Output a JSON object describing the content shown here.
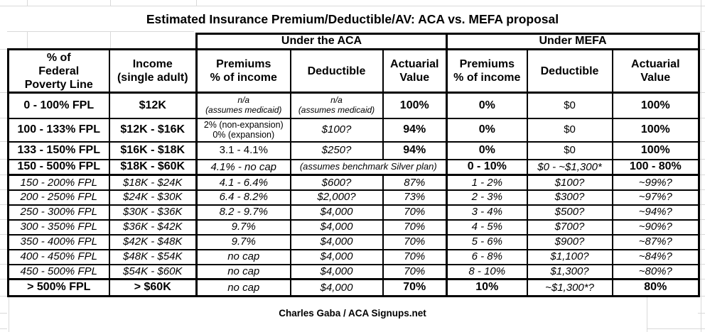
{
  "title": "Estimated Insurance Premium/Deductible/AV: ACA vs. MEFA proposal",
  "footer": "Charles Gaba / ACA Signups.net",
  "groups": {
    "aca": "Under the ACA",
    "mefa": "Under MEFA"
  },
  "headers": {
    "fpl": "% of\nFederal\nPoverty Line",
    "income": "Income\n(single adult)",
    "premiums": "Premiums\n% of income",
    "deductible": "Deductible",
    "av": "Actuarial\nValue"
  },
  "rows": [
    {
      "fpl": "0 - 100% FPL",
      "income": "$12K",
      "aca_premium": "n/a\n(assumes medicaid)",
      "aca_deductible": "n/a\n(assumes medicaid)",
      "aca_av": "100%",
      "mefa_premium": "0%",
      "mefa_deductible": "$0",
      "mefa_av": "100%"
    },
    {
      "fpl": "100 - 133% FPL",
      "income": "$12K - $16K",
      "aca_premium": "2% (non-expansion)\n0% (expansion)",
      "aca_deductible": "$100?",
      "aca_av": "94%",
      "mefa_premium": "0%",
      "mefa_deductible": "$0",
      "mefa_av": "100%"
    },
    {
      "fpl": "133 - 150% FPL",
      "income": "$16K - $18K",
      "aca_premium": "3.1 - 4.1%",
      "aca_deductible": "$250?",
      "aca_av": "94%",
      "mefa_premium": "0%",
      "mefa_deductible": "$0",
      "mefa_av": "100%"
    },
    {
      "fpl": "150 - 500% FPL",
      "income": "$18K - $60K",
      "aca_premium": "4.1% - no cap",
      "aca_deductible_av": "(assumes benchmark Silver plan)",
      "mefa_premium": "0 - 10%",
      "mefa_deductible": "$0 - ~$1,300*",
      "mefa_av": "100 - 80%"
    },
    {
      "fpl": "150 - 200% FPL",
      "income": "$18K - $24K",
      "aca_premium": "4.1 - 6.4%",
      "aca_deductible": "$600?",
      "aca_av": "87%",
      "mefa_premium": "1 - 2%",
      "mefa_deductible": "$100?",
      "mefa_av": "~99%?"
    },
    {
      "fpl": "200 - 250% FPL",
      "income": "$24K - $30K",
      "aca_premium": "6.4 - 8.2%",
      "aca_deductible": "$2,000?",
      "aca_av": "73%",
      "mefa_premium": "2 - 3%",
      "mefa_deductible": "$300?",
      "mefa_av": "~97%?"
    },
    {
      "fpl": "250 - 300% FPL",
      "income": "$30K - $36K",
      "aca_premium": "8.2 - 9.7%",
      "aca_deductible": "$4,000",
      "aca_av": "70%",
      "mefa_premium": "3 - 4%",
      "mefa_deductible": "$500?",
      "mefa_av": "~94%?"
    },
    {
      "fpl": "300 - 350% FPL",
      "income": "$36K - $42K",
      "aca_premium": "9.7%",
      "aca_deductible": "$4,000",
      "aca_av": "70%",
      "mefa_premium": "4 - 5%",
      "mefa_deductible": "$700?",
      "mefa_av": "~90%?"
    },
    {
      "fpl": "350 - 400% FPL",
      "income": "$42K - $48K",
      "aca_premium": "9.7%",
      "aca_deductible": "$4,000",
      "aca_av": "70%",
      "mefa_premium": "5 - 6%",
      "mefa_deductible": "$900?",
      "mefa_av": "~87%?"
    },
    {
      "fpl": "400 - 450% FPL",
      "income": "$48K - $54K",
      "aca_premium": "no cap",
      "aca_deductible": "$4,000",
      "aca_av": "70%",
      "mefa_premium": "6 - 8%",
      "mefa_deductible": "$1,100?",
      "mefa_av": "~84%?"
    },
    {
      "fpl": "450 - 500% FPL",
      "income": "$54K - $60K",
      "aca_premium": "no cap",
      "aca_deductible": "$4,000",
      "aca_av": "70%",
      "mefa_premium": "8 - 10%",
      "mefa_deductible": "$1,300?",
      "mefa_av": "~80%?"
    },
    {
      "fpl": "> 500% FPL",
      "income": "> $60K",
      "aca_premium": "no cap",
      "aca_deductible": "$4,000",
      "aca_av": "70%",
      "mefa_premium": "10%",
      "mefa_deductible": "~$1,300*?",
      "mefa_av": "80%"
    }
  ]
}
